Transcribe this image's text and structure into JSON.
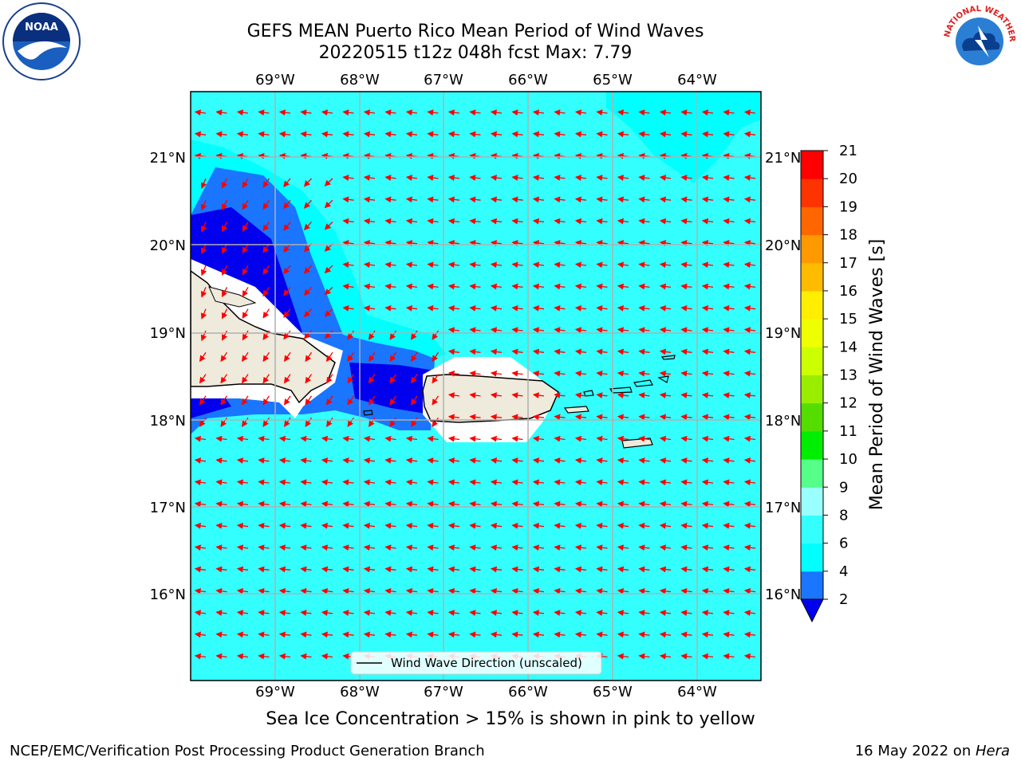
{
  "header": {
    "title_line1": "GEFS MEAN Puerto Rico Mean Period of Wind Waves",
    "title_line2": "20220515 t12z 048h fcst   Max: 7.79"
  },
  "map": {
    "lon_labels": [
      "69°W",
      "68°W",
      "67°W",
      "66°W",
      "65°W",
      "64°W"
    ],
    "lat_labels": [
      "21°N",
      "20°N",
      "19°N",
      "18°N",
      "17°N",
      "16°N"
    ],
    "legend_label": "Wind Wave Direction (unscaled)",
    "colors": {
      "ocean_light": "#33ffff",
      "ocean_mid": "#00ffff",
      "shade_blue": "#1a75ff",
      "shade_dark": "#0000ee",
      "land": "#eeeadc",
      "arrow": "#ff0000",
      "grid": "#b0b0b0"
    }
  },
  "colorbar": {
    "label": "Mean Period of Wind Waves [s]",
    "ticks": [
      "2",
      "4",
      "6",
      "8",
      "9",
      "10",
      "11",
      "12",
      "13",
      "14",
      "15",
      "16",
      "17",
      "18",
      "19",
      "20",
      "21"
    ],
    "colors": [
      "#0000ee",
      "#1a75ff",
      "#00ffff",
      "#33ffff",
      "#99ffff",
      "#55ff88",
      "#00ee00",
      "#55dd00",
      "#99ee00",
      "#ccff00",
      "#eeff00",
      "#ffee00",
      "#ffbb00",
      "#ff9900",
      "#ff6600",
      "#ff3300",
      "#ff0000"
    ]
  },
  "subtitle": "Sea Ice Concentration > 15% is shown in pink to yellow",
  "footer": {
    "left": "NCEP/EMC/Verification Post Processing Product Generation Branch",
    "right_date": "16 May 2022 on ",
    "right_host": "Hera"
  },
  "logos": {
    "left": "NOAA",
    "right": "NATIONAL WEATHER SERVICE"
  }
}
